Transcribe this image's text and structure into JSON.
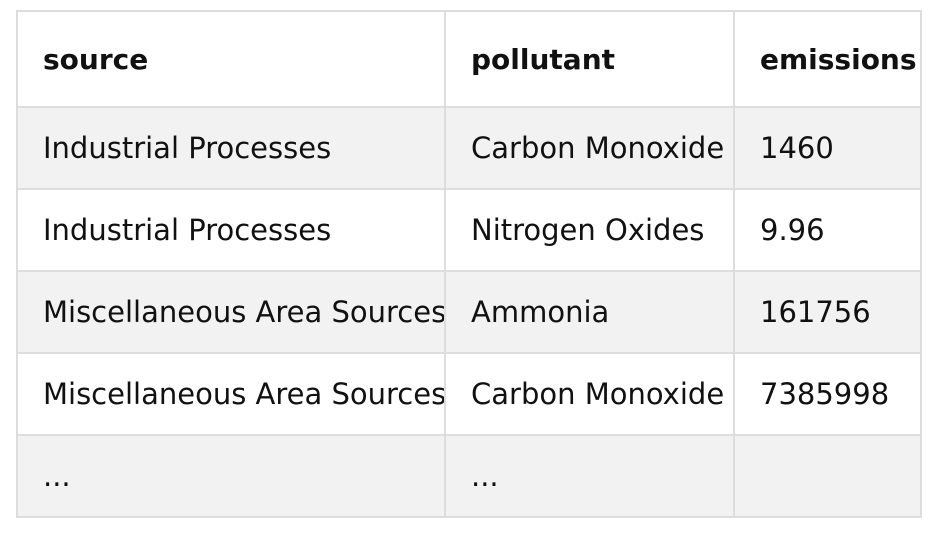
{
  "table": {
    "columns": [
      "source",
      "pollutant",
      "emissions"
    ],
    "rows": [
      [
        "Industrial Processes",
        "Carbon Monoxide",
        "1460"
      ],
      [
        "Industrial Processes",
        "Nitrogen Oxides",
        "9.96"
      ],
      [
        "Miscellaneous Area Sources",
        "Ammonia",
        "161756"
      ],
      [
        "Miscellaneous Area Sources",
        "Carbon Monoxide",
        "7385998"
      ],
      [
        "...",
        "...",
        ""
      ]
    ]
  }
}
